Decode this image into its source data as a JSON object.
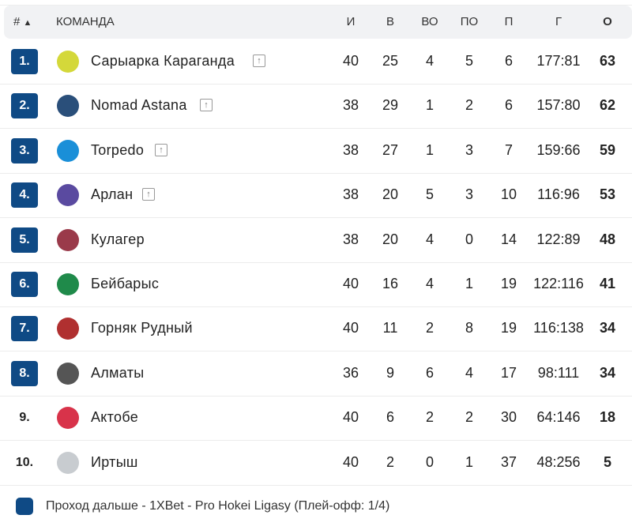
{
  "header": {
    "rank": "#",
    "sort": "▲",
    "team": "КОМАНДА",
    "gp": "И",
    "w": "В",
    "otw": "ВО",
    "otl": "ПО",
    "l": "П",
    "goals": "Г",
    "pts": "О"
  },
  "colors": {
    "accent": "#0f4a85"
  },
  "rows": [
    {
      "pos": "1.",
      "team": "Сарыарка Караганда",
      "up": true,
      "promo": true,
      "logo": "#d4d83a",
      "gp": "40",
      "w": "25",
      "otw": "4",
      "otl": "5",
      "l": "6",
      "goals": "177:81",
      "pts": "63"
    },
    {
      "pos": "2.",
      "team": "Nomad Astana",
      "up": true,
      "promo": true,
      "logo": "#2a4f7a",
      "gp": "38",
      "w": "29",
      "otw": "1",
      "otl": "2",
      "l": "6",
      "goals": "157:80",
      "pts": "62"
    },
    {
      "pos": "3.",
      "team": "Torpedo",
      "up": true,
      "promo": true,
      "logo": "#1a8fd8",
      "gp": "38",
      "w": "27",
      "otw": "1",
      "otl": "3",
      "l": "7",
      "goals": "159:66",
      "pts": "59"
    },
    {
      "pos": "4.",
      "team": "Арлан",
      "up": true,
      "promo": true,
      "logo": "#5a4aa0",
      "gp": "38",
      "w": "20",
      "otw": "5",
      "otl": "3",
      "l": "10",
      "goals": "116:96",
      "pts": "53"
    },
    {
      "pos": "5.",
      "team": "Кулагер",
      "up": false,
      "promo": true,
      "logo": "#9a3a4a",
      "gp": "38",
      "w": "20",
      "otw": "4",
      "otl": "0",
      "l": "14",
      "goals": "122:89",
      "pts": "48"
    },
    {
      "pos": "6.",
      "team": "Бейбарыс",
      "up": false,
      "promo": true,
      "logo": "#1f8a4a",
      "gp": "40",
      "w": "16",
      "otw": "4",
      "otl": "1",
      "l": "19",
      "goals": "122:116",
      "pts": "41"
    },
    {
      "pos": "7.",
      "team": "Горняк Рудный",
      "up": false,
      "promo": true,
      "logo": "#b03030",
      "gp": "40",
      "w": "11",
      "otw": "2",
      "otl": "8",
      "l": "19",
      "goals": "116:138",
      "pts": "34"
    },
    {
      "pos": "8.",
      "team": "Алматы",
      "up": false,
      "promo": true,
      "logo": "#555555",
      "gp": "36",
      "w": "9",
      "otw": "6",
      "otl": "4",
      "l": "17",
      "goals": "98:111",
      "pts": "34"
    },
    {
      "pos": "9.",
      "team": "Актобе",
      "up": false,
      "promo": false,
      "logo": "#d8334a",
      "gp": "40",
      "w": "6",
      "otw": "2",
      "otl": "2",
      "l": "30",
      "goals": "64:146",
      "pts": "18"
    },
    {
      "pos": "10.",
      "team": "Иртыш",
      "up": false,
      "promo": false,
      "logo": "#c8ccd0",
      "gp": "40",
      "w": "2",
      "otw": "0",
      "otl": "1",
      "l": "37",
      "goals": "48:256",
      "pts": "5"
    }
  ],
  "legend": "Проход дальше - 1XBet - Pro Hokei Ligasy (Плей-офф: 1/4)"
}
